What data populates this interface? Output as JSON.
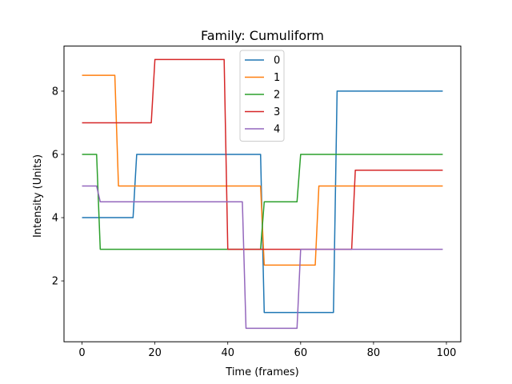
{
  "chart_data": {
    "type": "line",
    "title": "Family: Cumuliform",
    "xlabel": "Time (frames)",
    "ylabel": "Intensity (Units)",
    "xlim": [
      -4.95,
      103.95
    ],
    "ylim": [
      0.075,
      9.425
    ],
    "xticks": [
      0,
      20,
      40,
      60,
      80,
      100
    ],
    "yticks": [
      2,
      4,
      6,
      8
    ],
    "grid": false,
    "legend_position": "top-center",
    "series": [
      {
        "name": "0",
        "color": "#1f77b4",
        "x": [
          0,
          14,
          15,
          49,
          50,
          69,
          70,
          99
        ],
        "y": [
          4,
          4,
          6,
          6,
          1,
          1,
          8,
          8
        ]
      },
      {
        "name": "1",
        "color": "#ff7f0e",
        "x": [
          0,
          9,
          10,
          49,
          50,
          64,
          65,
          99
        ],
        "y": [
          8.5,
          8.5,
          5,
          5,
          2.5,
          2.5,
          5,
          5
        ]
      },
      {
        "name": "2",
        "color": "#2ca02c",
        "x": [
          0,
          4,
          5,
          49,
          50,
          59,
          60,
          99
        ],
        "y": [
          6,
          6,
          3,
          3,
          4.5,
          4.5,
          6,
          6
        ]
      },
      {
        "name": "3",
        "color": "#d62728",
        "x": [
          0,
          19,
          20,
          39,
          40,
          74,
          75,
          99
        ],
        "y": [
          7,
          7,
          9,
          9,
          3,
          3,
          5.5,
          5.5
        ]
      },
      {
        "name": "4",
        "color": "#9467bd",
        "x": [
          0,
          4,
          5,
          44,
          45,
          59,
          60,
          99
        ],
        "y": [
          5,
          5,
          4.5,
          4.5,
          0.5,
          0.5,
          3,
          3
        ]
      }
    ]
  }
}
